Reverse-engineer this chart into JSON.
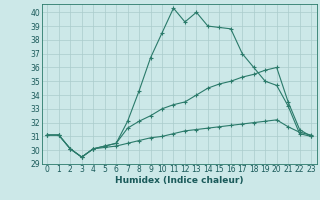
{
  "xlabel": "Humidex (Indice chaleur)",
  "background_color": "#cce8e8",
  "grid_color": "#aacccc",
  "line_color": "#2a7a6a",
  "xlim": [
    -0.5,
    23.5
  ],
  "ylim": [
    29,
    40.6
  ],
  "yticks": [
    29,
    30,
    31,
    32,
    33,
    34,
    35,
    36,
    37,
    38,
    39,
    40
  ],
  "xticks": [
    0,
    1,
    2,
    3,
    4,
    5,
    6,
    7,
    8,
    9,
    10,
    11,
    12,
    13,
    14,
    15,
    16,
    17,
    18,
    19,
    20,
    21,
    22,
    23
  ],
  "lines": [
    {
      "x": [
        0,
        1,
        2,
        3,
        4,
        5,
        6,
        7,
        8,
        9,
        10,
        11,
        12,
        13,
        14,
        15,
        16,
        17,
        18,
        19,
        20,
        21,
        22,
        23
      ],
      "y": [
        31.1,
        31.1,
        30.1,
        29.5,
        30.1,
        30.3,
        30.5,
        32.1,
        34.3,
        36.7,
        38.5,
        40.3,
        39.3,
        40.0,
        39.0,
        38.9,
        38.8,
        37.0,
        36.0,
        35.0,
        34.7,
        33.2,
        31.2,
        31.0
      ]
    },
    {
      "x": [
        0,
        1,
        2,
        3,
        4,
        5,
        6,
        7,
        8,
        9,
        10,
        11,
        12,
        13,
        14,
        15,
        16,
        17,
        18,
        19,
        20,
        21,
        22,
        23
      ],
      "y": [
        31.1,
        31.1,
        30.1,
        29.5,
        30.1,
        30.3,
        30.5,
        31.6,
        32.1,
        32.5,
        33.0,
        33.3,
        33.5,
        34.0,
        34.5,
        34.8,
        35.0,
        35.3,
        35.5,
        35.8,
        36.0,
        33.5,
        31.5,
        31.0
      ]
    },
    {
      "x": [
        0,
        1,
        2,
        3,
        4,
        5,
        6,
        7,
        8,
        9,
        10,
        11,
        12,
        13,
        14,
        15,
        16,
        17,
        18,
        19,
        20,
        21,
        22,
        23
      ],
      "y": [
        31.1,
        31.1,
        30.1,
        29.5,
        30.1,
        30.2,
        30.3,
        30.5,
        30.7,
        30.9,
        31.0,
        31.2,
        31.4,
        31.5,
        31.6,
        31.7,
        31.8,
        31.9,
        32.0,
        32.1,
        32.2,
        31.7,
        31.3,
        31.1
      ]
    }
  ]
}
